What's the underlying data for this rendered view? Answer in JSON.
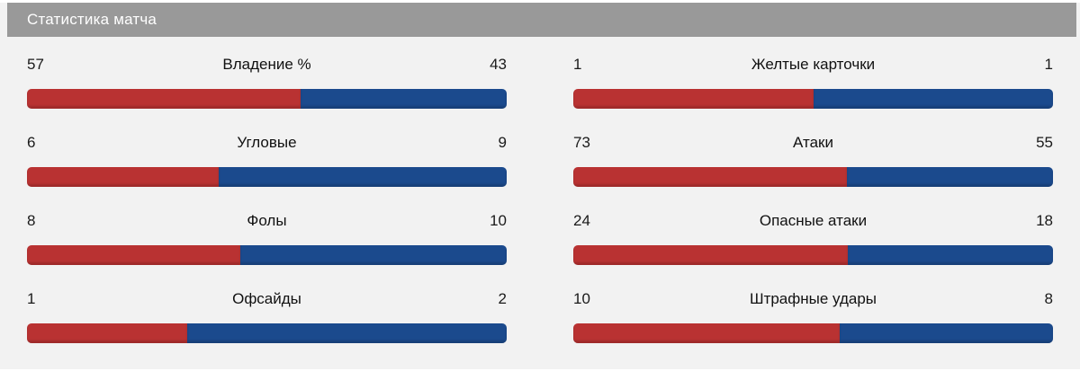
{
  "header": {
    "title": "Статистика матча"
  },
  "colors": {
    "home": "#b93232",
    "away": "#1b4a8d",
    "header_bg": "#999999",
    "panel_bg": "#f2f2f2"
  },
  "chart_data": {
    "type": "bar",
    "title": "Статистика матча",
    "legend_position": "none",
    "columns": [
      {
        "rows": [
          {
            "label": "Владение %",
            "home": 57,
            "away": 43
          },
          {
            "label": "Угловые",
            "home": 6,
            "away": 9
          },
          {
            "label": "Фолы",
            "home": 8,
            "away": 10
          },
          {
            "label": "Офсайды",
            "home": 1,
            "away": 2
          }
        ]
      },
      {
        "rows": [
          {
            "label": "Желтые карточки",
            "home": 1,
            "away": 1
          },
          {
            "label": "Атаки",
            "home": 73,
            "away": 55
          },
          {
            "label": "Опасные атаки",
            "home": 24,
            "away": 18
          },
          {
            "label": "Штрафные удары",
            "home": 10,
            "away": 8
          }
        ]
      }
    ]
  }
}
